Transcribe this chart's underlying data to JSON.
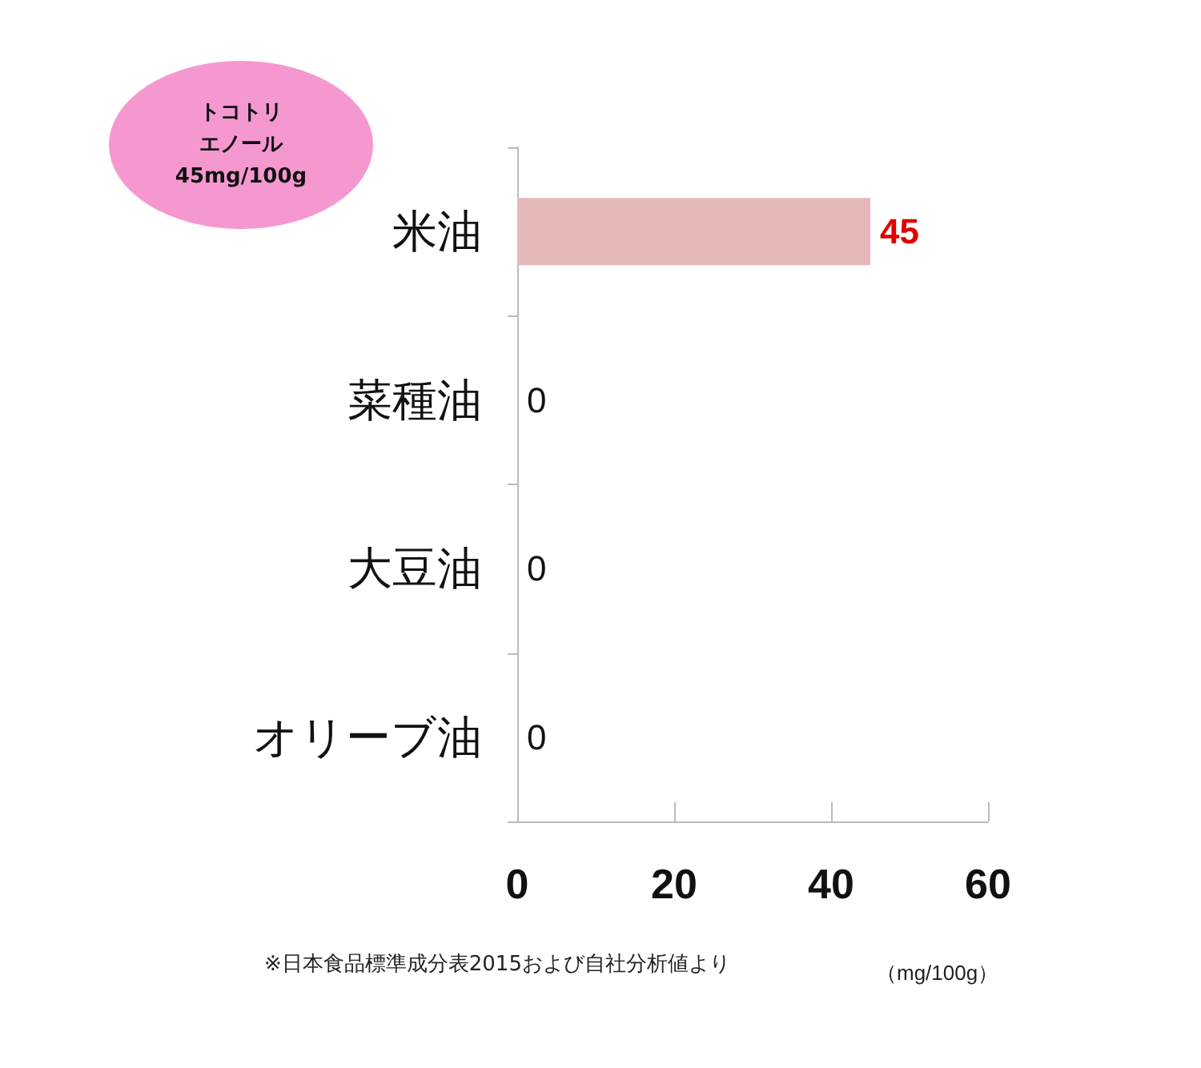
{
  "chart_data": {
    "type": "bar",
    "orientation": "horizontal",
    "categories": [
      "米油",
      "菜種油",
      "大豆油",
      "オリーブ油"
    ],
    "values": [
      45,
      0,
      0,
      0
    ],
    "color": "#e6b8b7",
    "data_labels": true,
    "xlim": [
      0,
      60
    ],
    "xticks": [
      0,
      20,
      40,
      60
    ],
    "xlabel": "（mg/100g）",
    "grid": false,
    "annotations": [
      "トコトリエノール",
      "45mg/100g",
      "※日本食品標準成分表2015および自社分析値より"
    ]
  }
}
